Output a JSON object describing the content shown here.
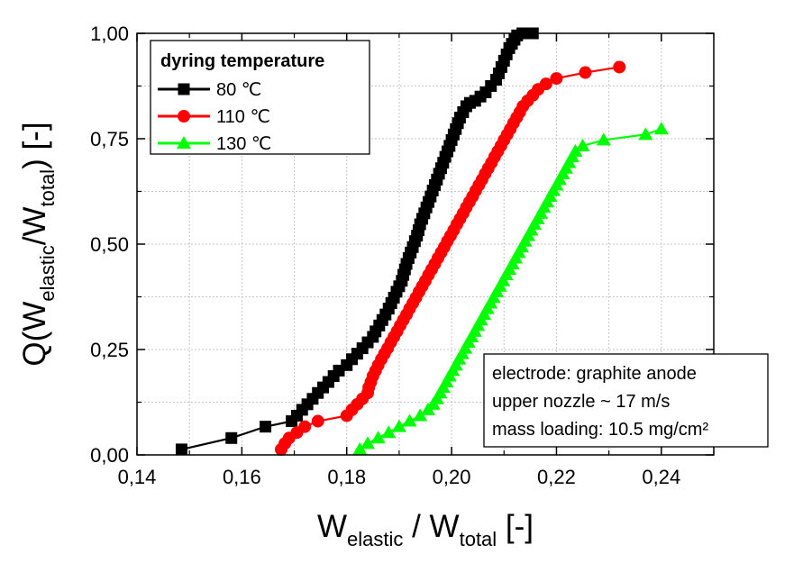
{
  "chart_data": {
    "type": "line",
    "x_axis": {
      "label_main": "W",
      "label_sub1": "elastic",
      "label_mid": " / W",
      "label_sub2": "total",
      "label_end": " [-]",
      "range": [
        0.14,
        0.25
      ],
      "ticks": [
        0.14,
        0.16,
        0.18,
        0.2,
        0.22,
        0.24
      ],
      "tick_labels": [
        "0,14",
        "0,16",
        "0,18",
        "0,20",
        "0,22",
        "0,24"
      ]
    },
    "y_axis": {
      "label_main": "Q(W",
      "label_sub1": "elastic",
      "label_mid": "/W",
      "label_sub2": "total",
      "label_end": ") [-]",
      "range": [
        0,
        1
      ],
      "ticks": [
        0,
        0.25,
        0.5,
        0.75,
        1.0
      ],
      "tick_labels": [
        "0,00",
        "0,25",
        "0,50",
        "0,75",
        "1,00"
      ]
    },
    "grid": true,
    "legend": {
      "title": "dyring temperature",
      "placement": "top-left"
    },
    "annotation": {
      "lines": [
        "electrode: graphite anode",
        "upper nozzle ~ 17 m/s",
        "mass loading: 10.5 mg/cm²"
      ],
      "placement": "bottom-right"
    },
    "series": [
      {
        "name": "80 ℃",
        "color": "#000000",
        "marker": "square",
        "x": [
          0.1485,
          0.158,
          0.1645,
          0.1695,
          0.1705,
          0.1715,
          0.1725,
          0.1735,
          0.1745,
          0.1755,
          0.1765,
          0.1775,
          0.1785,
          0.18,
          0.181,
          0.182,
          0.183,
          0.184,
          0.185,
          0.1855,
          0.1862,
          0.1868,
          0.1874,
          0.188,
          0.1885,
          0.189,
          0.1895,
          0.19,
          0.1905,
          0.1908,
          0.1911,
          0.1914,
          0.1918,
          0.1922,
          0.1926,
          0.193,
          0.1934,
          0.1937,
          0.194,
          0.1944,
          0.1948,
          0.1952,
          0.1956,
          0.196,
          0.1964,
          0.1968,
          0.1972,
          0.1976,
          0.198,
          0.1984,
          0.1988,
          0.1992,
          0.1996,
          0.2,
          0.2004,
          0.2008,
          0.2012,
          0.2016,
          0.2022,
          0.2028,
          0.2035,
          0.2045,
          0.2055,
          0.2065,
          0.2075,
          0.2085,
          0.209,
          0.2095,
          0.21,
          0.2105,
          0.211,
          0.2115,
          0.212,
          0.2125,
          0.2135,
          0.2155
        ],
        "y": [
          0.013,
          0.04,
          0.067,
          0.08,
          0.093,
          0.107,
          0.12,
          0.133,
          0.147,
          0.16,
          0.173,
          0.187,
          0.2,
          0.213,
          0.227,
          0.24,
          0.253,
          0.267,
          0.28,
          0.293,
          0.307,
          0.32,
          0.333,
          0.347,
          0.36,
          0.373,
          0.387,
          0.4,
          0.413,
          0.427,
          0.44,
          0.453,
          0.467,
          0.48,
          0.493,
          0.507,
          0.52,
          0.533,
          0.547,
          0.56,
          0.573,
          0.587,
          0.6,
          0.613,
          0.627,
          0.64,
          0.653,
          0.667,
          0.68,
          0.693,
          0.707,
          0.72,
          0.733,
          0.747,
          0.76,
          0.773,
          0.787,
          0.8,
          0.813,
          0.827,
          0.835,
          0.84,
          0.85,
          0.86,
          0.875,
          0.89,
          0.905,
          0.92,
          0.935,
          0.95,
          0.965,
          0.975,
          0.985,
          0.995,
          1.0,
          1.0
        ]
      },
      {
        "name": "110 ℃",
        "color": "#ff0000",
        "marker": "circle",
        "x": [
          0.1675,
          0.1682,
          0.169,
          0.1705,
          0.172,
          0.1745,
          0.18,
          0.181,
          0.182,
          0.183,
          0.184,
          0.1842,
          0.1846,
          0.185,
          0.1855,
          0.186,
          0.1866,
          0.1872,
          0.1878,
          0.1884,
          0.189,
          0.1896,
          0.1902,
          0.1908,
          0.1914,
          0.192,
          0.1926,
          0.1932,
          0.1938,
          0.1944,
          0.195,
          0.1956,
          0.1962,
          0.1968,
          0.1974,
          0.198,
          0.1986,
          0.1992,
          0.1998,
          0.2004,
          0.201,
          0.2016,
          0.2022,
          0.2028,
          0.2034,
          0.204,
          0.2046,
          0.2052,
          0.2058,
          0.2064,
          0.207,
          0.2076,
          0.2082,
          0.2088,
          0.2094,
          0.21,
          0.2106,
          0.2112,
          0.2118,
          0.2124,
          0.213,
          0.2136,
          0.2145,
          0.2155,
          0.2165,
          0.218,
          0.22,
          0.2255,
          0.232
        ],
        "y": [
          0.013,
          0.027,
          0.04,
          0.053,
          0.067,
          0.08,
          0.093,
          0.107,
          0.12,
          0.133,
          0.147,
          0.16,
          0.173,
          0.187,
          0.2,
          0.213,
          0.227,
          0.24,
          0.253,
          0.267,
          0.28,
          0.293,
          0.307,
          0.32,
          0.333,
          0.347,
          0.36,
          0.373,
          0.387,
          0.4,
          0.413,
          0.427,
          0.44,
          0.453,
          0.467,
          0.48,
          0.493,
          0.507,
          0.52,
          0.533,
          0.547,
          0.56,
          0.573,
          0.587,
          0.6,
          0.613,
          0.627,
          0.64,
          0.653,
          0.667,
          0.68,
          0.693,
          0.707,
          0.72,
          0.733,
          0.747,
          0.76,
          0.773,
          0.787,
          0.8,
          0.813,
          0.827,
          0.84,
          0.853,
          0.867,
          0.88,
          0.893,
          0.907,
          0.92
        ]
      },
      {
        "name": "130 ℃",
        "color": "#00ff00",
        "marker": "triangle",
        "x": [
          0.1825,
          0.184,
          0.186,
          0.188,
          0.19,
          0.192,
          0.194,
          0.1955,
          0.1965,
          0.1972,
          0.1978,
          0.1984,
          0.199,
          0.1996,
          0.2002,
          0.2008,
          0.2014,
          0.202,
          0.2026,
          0.2032,
          0.2038,
          0.2044,
          0.205,
          0.2056,
          0.2062,
          0.2068,
          0.2074,
          0.208,
          0.2086,
          0.2092,
          0.2098,
          0.2104,
          0.211,
          0.2116,
          0.2122,
          0.2128,
          0.2134,
          0.214,
          0.2146,
          0.2152,
          0.2158,
          0.2164,
          0.217,
          0.2176,
          0.2182,
          0.2188,
          0.2194,
          0.22,
          0.2206,
          0.2212,
          0.2218,
          0.2224,
          0.223,
          0.2236,
          0.225,
          0.229,
          0.237,
          0.24
        ],
        "y": [
          0.013,
          0.027,
          0.04,
          0.053,
          0.067,
          0.08,
          0.093,
          0.107,
          0.12,
          0.133,
          0.147,
          0.16,
          0.173,
          0.187,
          0.2,
          0.213,
          0.227,
          0.24,
          0.253,
          0.267,
          0.28,
          0.293,
          0.307,
          0.32,
          0.333,
          0.347,
          0.36,
          0.373,
          0.387,
          0.4,
          0.413,
          0.427,
          0.44,
          0.453,
          0.467,
          0.48,
          0.493,
          0.507,
          0.52,
          0.533,
          0.547,
          0.56,
          0.573,
          0.587,
          0.6,
          0.613,
          0.627,
          0.64,
          0.653,
          0.667,
          0.68,
          0.693,
          0.707,
          0.72,
          0.733,
          0.747,
          0.76,
          0.773
        ]
      }
    ]
  }
}
